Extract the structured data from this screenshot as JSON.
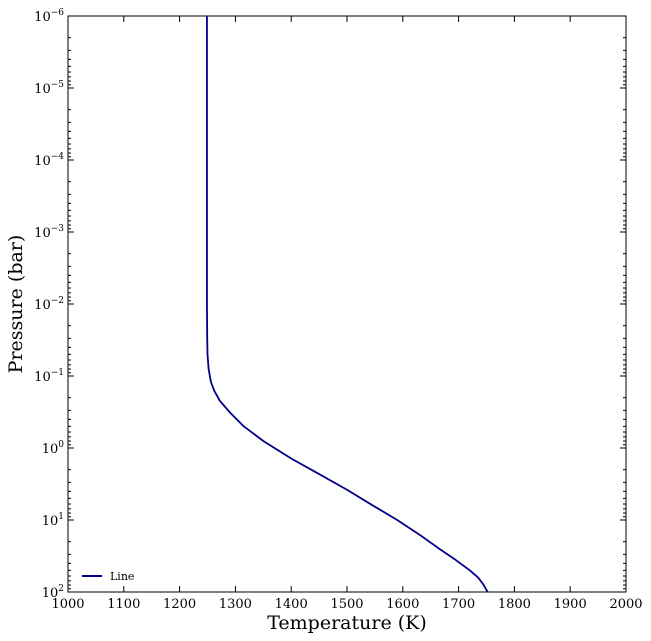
{
  "chart_data": {
    "type": "line",
    "title": "",
    "xlabel": "Temperature (K)",
    "ylabel": "Pressure (bar)",
    "xlim": [
      1000,
      2000
    ],
    "ylim": [
      100,
      1e-06
    ],
    "yscale": "log",
    "y_inverted": true,
    "grid": false,
    "legend_position": "lower-left",
    "x_ticks": [
      "1000",
      "1100",
      "1200",
      "1300",
      "1400",
      "1500",
      "1600",
      "1700",
      "1800",
      "1900",
      "2000"
    ],
    "y_ticks": [
      {
        "base": "10",
        "exp": "−6"
      },
      {
        "base": "10",
        "exp": "−5"
      },
      {
        "base": "10",
        "exp": "−4"
      },
      {
        "base": "10",
        "exp": "−3"
      },
      {
        "base": "10",
        "exp": "−2"
      },
      {
        "base": "10",
        "exp": "−1"
      },
      {
        "base": "10",
        "exp": "0"
      },
      {
        "base": "10",
        "exp": "1"
      },
      {
        "base": "10",
        "exp": "2"
      }
    ],
    "series": [
      {
        "name": "Line",
        "color": "#00008b",
        "x": [
          1249,
          1249,
          1249,
          1249,
          1249,
          1249.5,
          1250,
          1252,
          1256,
          1262,
          1272,
          1290,
          1315,
          1350,
          1400,
          1450,
          1500,
          1545,
          1590,
          1630,
          1665,
          1695,
          1720,
          1735,
          1745,
          1752
        ],
        "y": [
          1e-06,
          1e-05,
          0.0001,
          0.001,
          0.01,
          0.03,
          0.05,
          0.08,
          0.12,
          0.16,
          0.22,
          0.32,
          0.5,
          0.8,
          1.4,
          2.3,
          3.8,
          6.2,
          10,
          16,
          25,
          36,
          50,
          63,
          80,
          100
        ]
      }
    ]
  }
}
